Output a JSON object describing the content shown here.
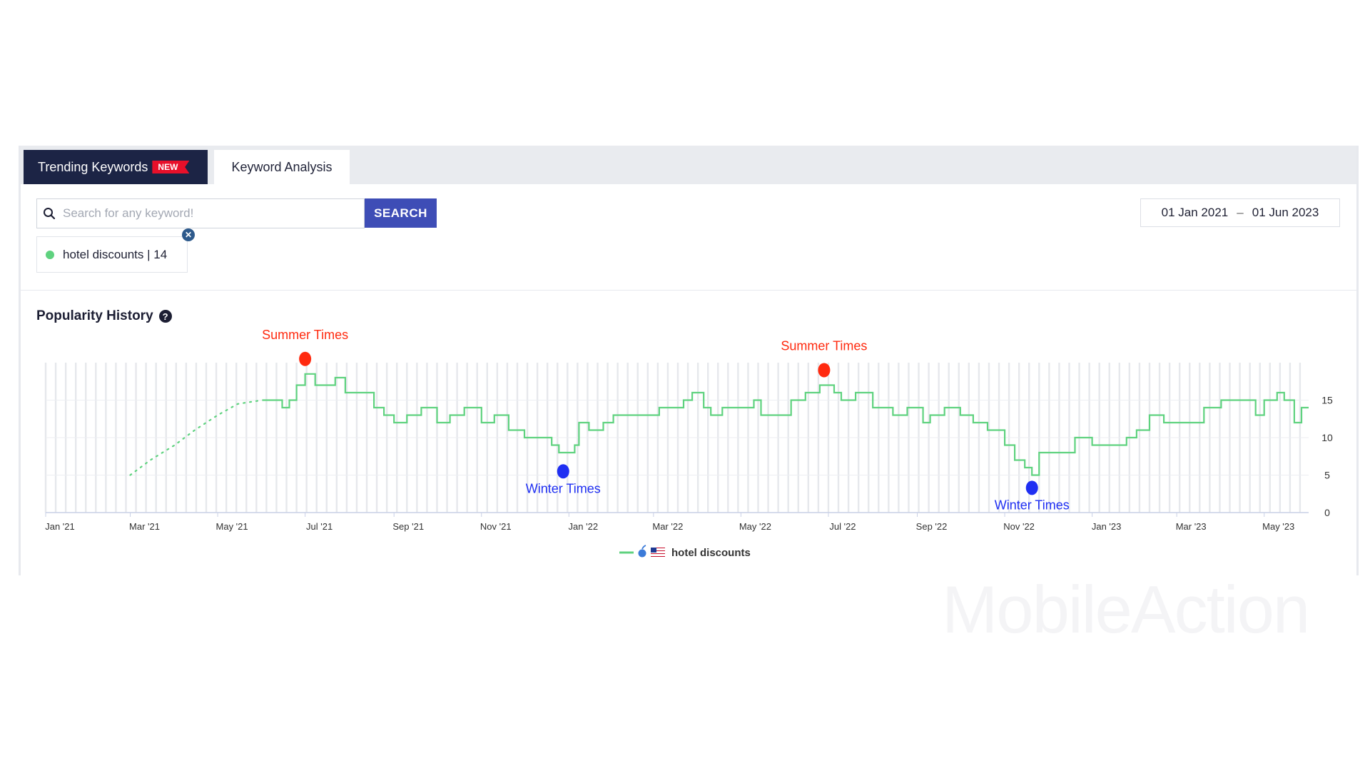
{
  "tabs": {
    "trending_label": "Trending Keywords",
    "new_badge": "NEW",
    "analysis_label": "Keyword Analysis"
  },
  "search": {
    "placeholder": "Search for any keyword!",
    "value": "",
    "button_label": "SEARCH"
  },
  "date_range": {
    "start": "01 Jan 2021",
    "separator": "–",
    "end": "01 Jun 2023"
  },
  "keyword_chip": {
    "label": "hotel discounts | 14",
    "dot_color": "#5fd27f",
    "close_icon": "close-icon"
  },
  "section": {
    "title": "Popularity History",
    "help_icon": "question-icon"
  },
  "watermark": "MobileAction",
  "chart_data": {
    "type": "line",
    "title": "",
    "xlabel": "",
    "ylabel": "",
    "x_ticks": [
      "Jan '21",
      "Mar '21",
      "May '21",
      "Jul '21",
      "Sep '21",
      "Nov '21",
      "Jan '22",
      "Mar '22",
      "May '22",
      "Jul '22",
      "Sep '22",
      "Nov '22",
      "Jan '23",
      "Mar '23",
      "May '23"
    ],
    "y_ticks": [
      0,
      5,
      10,
      15
    ],
    "ylim": [
      0,
      20
    ],
    "xlim": [
      "2021-01-01",
      "2023-06-01"
    ],
    "grid": true,
    "legend": {
      "placement": "bottom-center",
      "platform_icon": "apple-icon",
      "country_icon": "us-flag-icon"
    },
    "line_color": "#5fd27f",
    "series": [
      {
        "name": "hotel discounts",
        "points": [
          [
            "2021-03-01",
            5
          ],
          [
            "2021-03-15",
            7
          ],
          [
            "2021-04-01",
            9
          ],
          [
            "2021-04-15",
            11
          ],
          [
            "2021-05-01",
            13
          ],
          [
            "2021-05-15",
            14.5
          ],
          [
            "2021-06-01",
            15
          ],
          [
            "2021-06-10",
            15
          ],
          [
            "2021-06-15",
            14
          ],
          [
            "2021-06-20",
            15
          ],
          [
            "2021-06-25",
            17
          ],
          [
            "2021-07-01",
            18.5
          ],
          [
            "2021-07-08",
            17
          ],
          [
            "2021-07-15",
            17
          ],
          [
            "2021-07-22",
            18
          ],
          [
            "2021-07-29",
            16
          ],
          [
            "2021-08-10",
            16
          ],
          [
            "2021-08-18",
            14
          ],
          [
            "2021-08-25",
            13
          ],
          [
            "2021-09-01",
            12
          ],
          [
            "2021-09-10",
            13
          ],
          [
            "2021-09-20",
            14
          ],
          [
            "2021-10-01",
            12
          ],
          [
            "2021-10-10",
            13
          ],
          [
            "2021-10-20",
            14
          ],
          [
            "2021-11-01",
            12
          ],
          [
            "2021-11-10",
            13
          ],
          [
            "2021-11-20",
            11
          ],
          [
            "2021-12-01",
            10
          ],
          [
            "2021-12-10",
            10
          ],
          [
            "2021-12-20",
            9
          ],
          [
            "2021-12-25",
            8
          ],
          [
            "2022-01-01",
            8
          ],
          [
            "2022-01-05",
            9
          ],
          [
            "2022-01-08",
            12
          ],
          [
            "2022-01-15",
            11
          ],
          [
            "2022-01-25",
            12
          ],
          [
            "2022-02-01",
            13
          ],
          [
            "2022-02-15",
            13
          ],
          [
            "2022-02-28",
            13
          ],
          [
            "2022-03-05",
            14
          ],
          [
            "2022-03-15",
            14
          ],
          [
            "2022-03-22",
            15
          ],
          [
            "2022-03-28",
            16
          ],
          [
            "2022-04-05",
            14
          ],
          [
            "2022-04-10",
            13
          ],
          [
            "2022-04-18",
            14
          ],
          [
            "2022-05-01",
            14
          ],
          [
            "2022-05-10",
            15
          ],
          [
            "2022-05-15",
            13
          ],
          [
            "2022-05-25",
            13
          ],
          [
            "2022-06-05",
            15
          ],
          [
            "2022-06-15",
            16
          ],
          [
            "2022-06-25",
            17
          ],
          [
            "2022-07-01",
            17
          ],
          [
            "2022-07-05",
            16
          ],
          [
            "2022-07-10",
            15
          ],
          [
            "2022-07-20",
            16
          ],
          [
            "2022-08-01",
            14
          ],
          [
            "2022-08-15",
            13
          ],
          [
            "2022-08-25",
            14
          ],
          [
            "2022-09-05",
            12
          ],
          [
            "2022-09-10",
            13
          ],
          [
            "2022-09-20",
            14
          ],
          [
            "2022-10-01",
            13
          ],
          [
            "2022-10-10",
            12
          ],
          [
            "2022-10-20",
            11
          ],
          [
            "2022-11-01",
            9
          ],
          [
            "2022-11-08",
            7
          ],
          [
            "2022-11-15",
            6
          ],
          [
            "2022-11-20",
            5
          ],
          [
            "2022-11-25",
            8
          ],
          [
            "2022-12-01",
            8
          ],
          [
            "2022-12-10",
            8
          ],
          [
            "2022-12-20",
            10
          ],
          [
            "2023-01-01",
            9
          ],
          [
            "2023-01-15",
            9
          ],
          [
            "2023-01-25",
            10
          ],
          [
            "2023-02-01",
            11
          ],
          [
            "2023-02-10",
            13
          ],
          [
            "2023-02-20",
            12
          ],
          [
            "2023-03-01",
            12
          ],
          [
            "2023-03-10",
            12
          ],
          [
            "2023-03-20",
            14
          ],
          [
            "2023-04-01",
            15
          ],
          [
            "2023-04-15",
            15
          ],
          [
            "2023-04-25",
            13
          ],
          [
            "2023-05-01",
            15
          ],
          [
            "2023-05-10",
            16
          ],
          [
            "2023-05-15",
            15
          ],
          [
            "2023-05-22",
            12
          ],
          [
            "2023-05-27",
            14
          ],
          [
            "2023-06-01",
            14
          ]
        ]
      }
    ],
    "annotations": [
      {
        "label": "Summer Times",
        "date": "2021-07-01",
        "value": 20.5,
        "color": "#ff2a0f",
        "label_position": "above"
      },
      {
        "label": "Winter Times",
        "date": "2021-12-28",
        "value": 5.5,
        "color": "#1f2ff2",
        "label_position": "below"
      },
      {
        "label": "Summer Times",
        "date": "2022-06-28",
        "value": 19,
        "color": "#ff2a0f",
        "label_position": "above"
      },
      {
        "label": "Winter Times",
        "date": "2022-11-20",
        "value": 3.3,
        "color": "#1f2ff2",
        "label_position": "below"
      }
    ]
  }
}
